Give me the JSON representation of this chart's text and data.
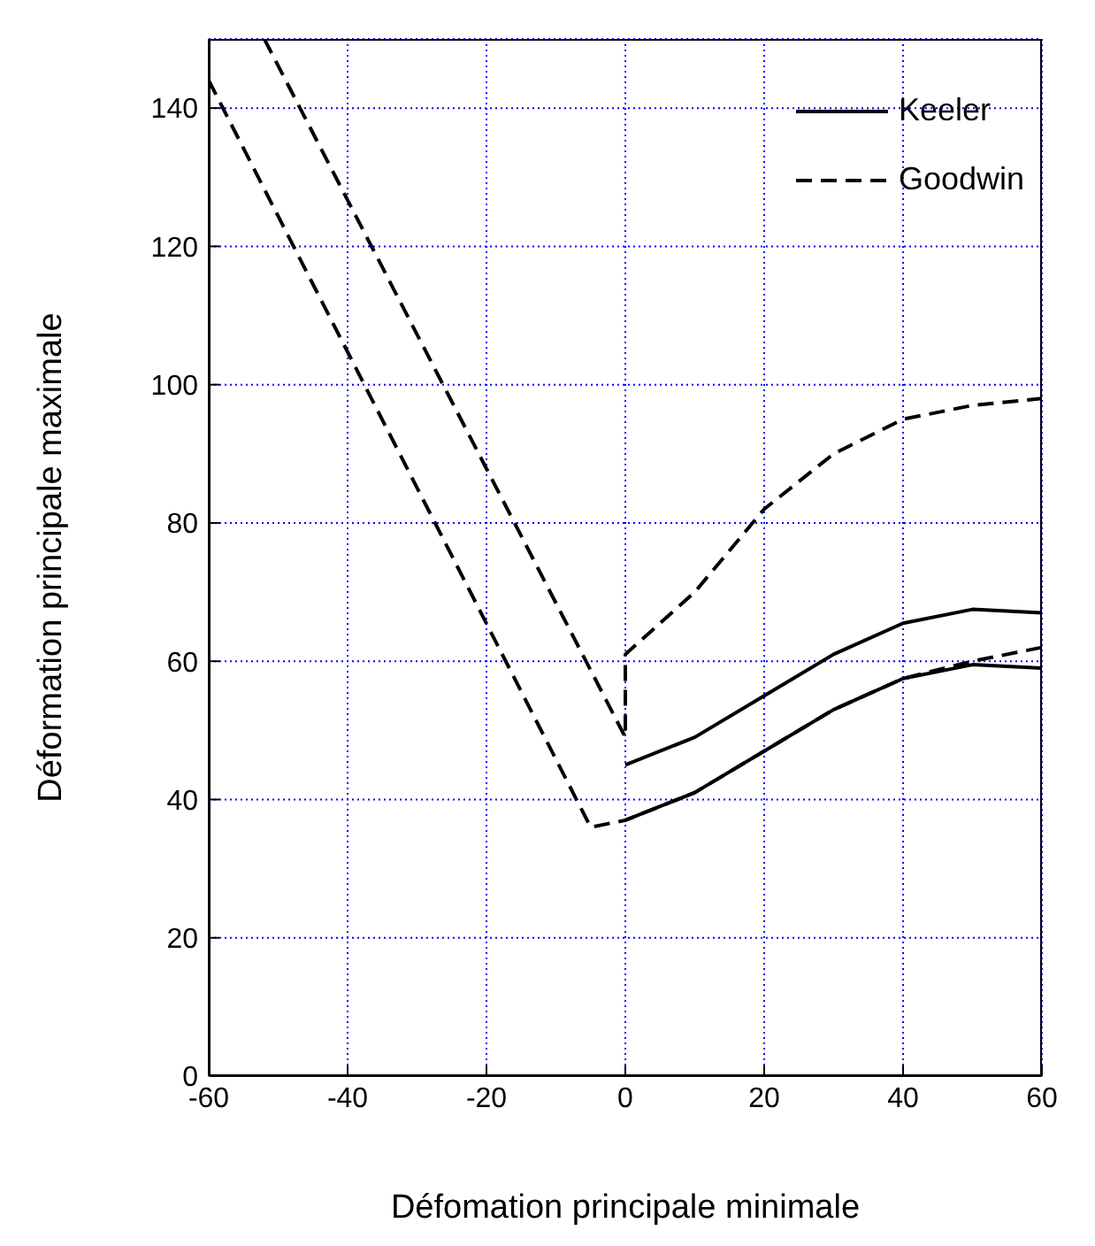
{
  "chart_data": {
    "type": "line",
    "xlabel": "Défomation principale minimale",
    "ylabel": "Déformation principale maximale",
    "xlim": [
      -60,
      60
    ],
    "xticks": [
      -60,
      -40,
      -20,
      0,
      20,
      40,
      60
    ],
    "ylim": [
      0,
      150
    ],
    "yticks": [
      0,
      20,
      40,
      60,
      80,
      100,
      120,
      140
    ],
    "grid": true,
    "legend": "top right",
    "marker": "none",
    "series": [
      {
        "name": "Keeler",
        "color": "#000000",
        "line_style": "solid",
        "x": [
          0,
          10,
          20,
          30,
          40,
          50,
          60
        ],
        "values": [
          45,
          49,
          55,
          61,
          65.5,
          67.5,
          67
        ]
      },
      {
        "color": "#000000",
        "line_style": "solid",
        "x": [
          0,
          10,
          20,
          30,
          40,
          50,
          60
        ],
        "values": [
          37,
          41,
          47,
          53,
          57.5,
          59.5,
          59
        ]
      },
      {
        "name": "Goodwin",
        "color": "#000000",
        "line_style": "dashed",
        "x": [
          -52,
          0,
          0,
          10,
          20,
          30,
          40,
          50,
          60
        ],
        "values": [
          150,
          49,
          61,
          70,
          82,
          90,
          95,
          97,
          98
        ]
      },
      {
        "color": "#000000",
        "line_style": "dashed",
        "x": [
          -60,
          -5,
          0,
          10,
          20,
          25,
          30,
          40,
          50,
          60
        ],
        "values": [
          144,
          36,
          37,
          41,
          47,
          50,
          53,
          57.5,
          60,
          62
        ]
      }
    ]
  }
}
